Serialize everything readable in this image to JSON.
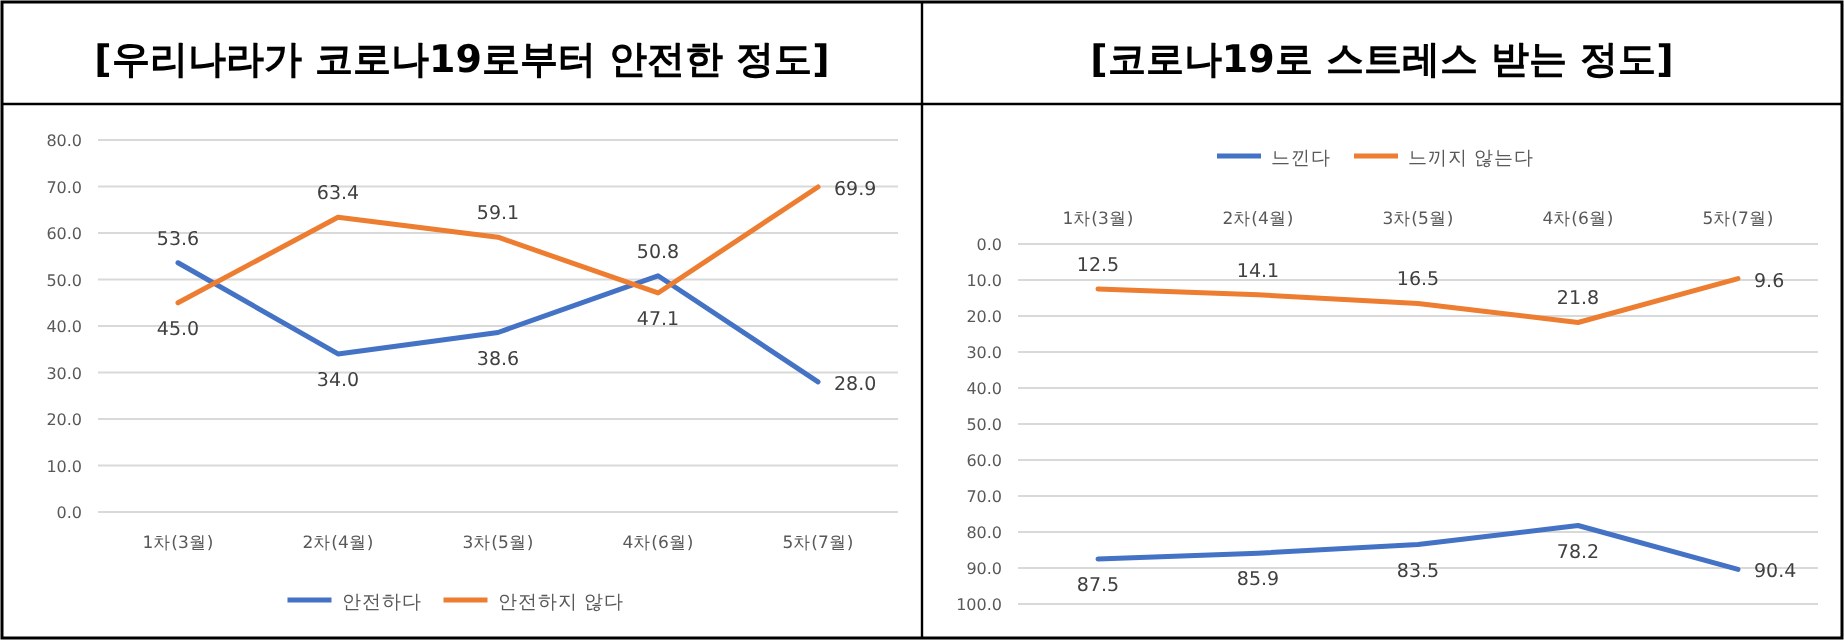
{
  "chart_data": [
    {
      "type": "line",
      "title": "[우리나라가 코로나19로부터 안전한 정도]",
      "categories": [
        "1차(3월)",
        "2차(4월)",
        "3차(5월)",
        "4차(6월)",
        "5차(7월)"
      ],
      "series": [
        {
          "name": "안전하다",
          "color": "#4472c4",
          "values": [
            53.6,
            34.0,
            38.6,
            50.8,
            28.0
          ],
          "value_labels": [
            "53.6",
            "34.0",
            "38.6",
            "50.8",
            "28.0"
          ]
        },
        {
          "name": "안전하지 않다",
          "color": "#ed7d31",
          "values": [
            45.0,
            63.4,
            59.1,
            47.1,
            69.9
          ],
          "value_labels": [
            "45.0",
            "63.4",
            "59.1",
            "47.1",
            "69.9"
          ]
        }
      ],
      "ylim": [
        0,
        80
      ],
      "yticks": [
        {
          "value": 0,
          "label": "0.0"
        },
        {
          "value": 10,
          "label": "10.0"
        },
        {
          "value": 20,
          "label": "20.0"
        },
        {
          "value": 30,
          "label": "30.0"
        },
        {
          "value": 40,
          "label": "40.0"
        },
        {
          "value": 50,
          "label": "50.0"
        },
        {
          "value": 60,
          "label": "60.0"
        },
        {
          "value": 70,
          "label": "70.0"
        },
        {
          "value": 80,
          "label": "80.0"
        }
      ],
      "grid": "y",
      "legend": "bottom"
    },
    {
      "type": "line",
      "title": "[코로나19로 스트레스 받는 정도]",
      "categories": [
        "1차(3월)",
        "2차(4월)",
        "3차(5월)",
        "4차(6월)",
        "5차(7월)"
      ],
      "series": [
        {
          "name": "느낀다",
          "color": "#4472c4",
          "values": [
            87.5,
            85.9,
            83.5,
            78.2,
            90.4
          ],
          "value_labels": [
            "87.5",
            "85.9",
            "83.5",
            "78.2",
            "90.4"
          ]
        },
        {
          "name": "느끼지 않는다",
          "color": "#ed7d31",
          "values": [
            12.5,
            14.1,
            16.5,
            21.8,
            9.6
          ],
          "value_labels": [
            "12.5",
            "14.1",
            "16.5",
            "21.8",
            "9.6"
          ]
        }
      ],
      "ylim": [
        100,
        0
      ],
      "yticks": [
        {
          "value": 0,
          "label": "0.0"
        },
        {
          "value": 10,
          "label": "10.0"
        },
        {
          "value": 20,
          "label": "20.0"
        },
        {
          "value": 30,
          "label": "30.0"
        },
        {
          "value": 40,
          "label": "40.0"
        },
        {
          "value": 50,
          "label": "50.0"
        },
        {
          "value": 60,
          "label": "60.0"
        },
        {
          "value": 70,
          "label": "70.0"
        },
        {
          "value": 80,
          "label": "80.0"
        },
        {
          "value": 90,
          "label": "90.0"
        },
        {
          "value": 100,
          "label": "100.0"
        }
      ],
      "grid": "y",
      "legend": "top"
    }
  ]
}
